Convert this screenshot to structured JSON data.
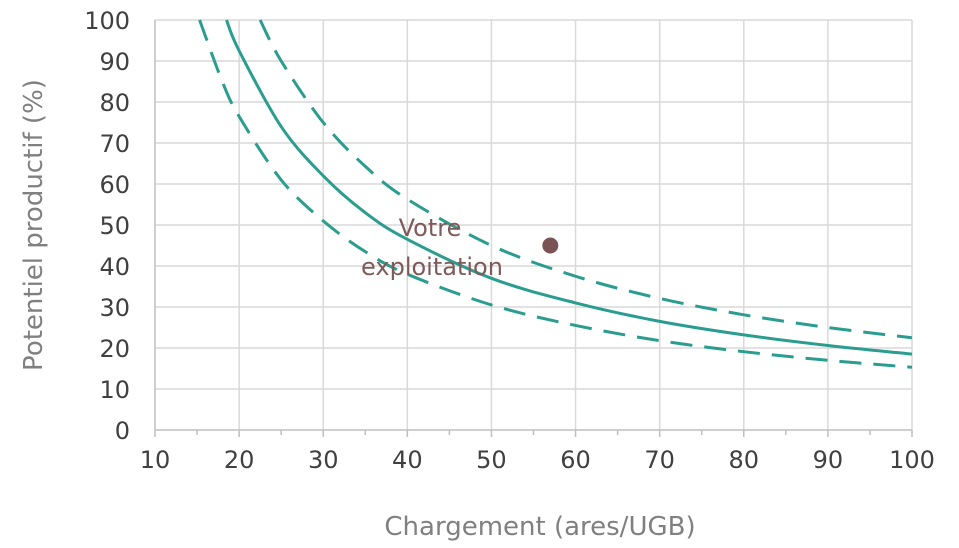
{
  "chart_data": {
    "type": "line",
    "xlabel": "Chargement (ares/UGB)",
    "ylabel": "Potentiel productif (%)",
    "xlim": [
      10,
      100
    ],
    "ylim": [
      0,
      100
    ],
    "xticks": [
      10,
      20,
      30,
      40,
      50,
      60,
      70,
      80,
      90,
      100
    ],
    "yticks": [
      0,
      10,
      20,
      30,
      40,
      50,
      60,
      70,
      80,
      90,
      100
    ],
    "grid": true,
    "series": [
      {
        "line_style": "dashed",
        "x": [
          15.3,
          18,
          20,
          25,
          30,
          35,
          40,
          50,
          60,
          70,
          80,
          90,
          100
        ],
        "y": [
          100,
          85,
          76.5,
          61,
          51,
          43.5,
          38,
          30.5,
          25.5,
          21.8,
          19.1,
          17,
          15.3
        ]
      },
      {
        "line_style": "solid",
        "x": [
          18.5,
          20,
          25,
          30,
          35,
          40,
          50,
          60,
          70,
          80,
          90,
          100
        ],
        "y": [
          100,
          92.5,
          74,
          62,
          53,
          46.5,
          37,
          31,
          26.5,
          23.2,
          20.6,
          18.5
        ]
      },
      {
        "line_style": "dashed",
        "x": [
          22.5,
          25,
          30,
          35,
          40,
          50,
          60,
          70,
          80,
          90,
          100
        ],
        "y": [
          100,
          90,
          75,
          64.3,
          56.3,
          45,
          37.5,
          32.1,
          28.1,
          25,
          22.5
        ]
      }
    ],
    "annotations": [
      {
        "type": "point",
        "x": 57,
        "y": 45,
        "label_lines": [
          "Votre",
          "exploitation"
        ]
      }
    ]
  },
  "colors": {
    "curve": "#2a9d8f",
    "point": "#7a5454",
    "annotation_text": "#7f5a5a",
    "grid": "#d9d9d9"
  }
}
